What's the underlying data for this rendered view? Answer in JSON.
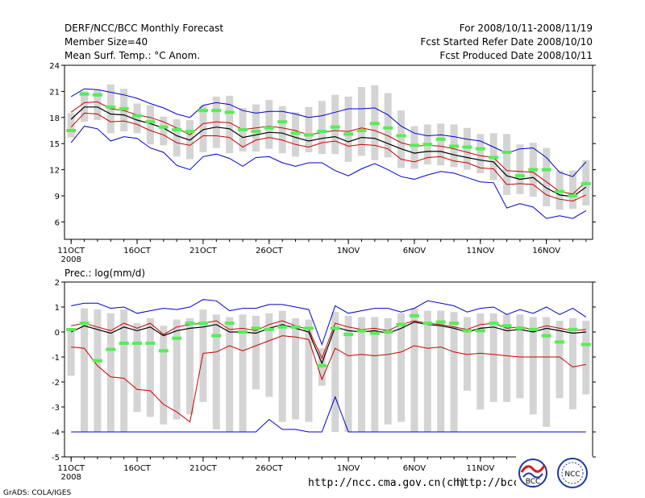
{
  "header": {
    "title": "DERF/NCC/BCC Monthly Forecast",
    "member_size": "Member Size=40",
    "variable": "Mean Surf. Temp.: °C Anom.",
    "period": "For 2008/10/11-2008/11/19",
    "started": "Fcst Started Refer Date 2008/10/10",
    "produced": "Fcst Produced Date 2008/10/11"
  },
  "footer": {
    "url1": "http://ncc.cma.gov.cn(ch)",
    "url2": "http://bcc.c",
    "credit": "GrADS: COLA/IGES",
    "logo_bcc": "BCC",
    "logo_ncc": "NCC"
  },
  "colors": {
    "envelope": "#0000cc",
    "percentile": "#cc0000",
    "mean": "#000000",
    "median": "#55ee55",
    "range_box": "#d4d4d4"
  },
  "chart_data": [
    {
      "type": "line",
      "title": "Mean Surf. Temp.: °C Anom.",
      "ylim": [
        4,
        24
      ],
      "yticks": [
        6,
        9,
        12,
        15,
        18,
        21,
        24
      ],
      "xlim": [
        0.5,
        40.5
      ],
      "xticks": [
        {
          "day": 1,
          "label": "11OCT",
          "sub": "2008"
        },
        {
          "day": 6,
          "label": "16OCT"
        },
        {
          "day": 11,
          "label": "21OCT"
        },
        {
          "day": 16,
          "label": "26OCT"
        },
        {
          "day": 22,
          "label": "1NOV"
        },
        {
          "day": 27,
          "label": "6NOV"
        },
        {
          "day": 32,
          "label": "11NOV"
        },
        {
          "day": 37,
          "label": "16NOV"
        }
      ],
      "series": [
        {
          "name": "max",
          "values": [
            20.4,
            21.3,
            21.2,
            20.9,
            20.6,
            20.2,
            19.6,
            19.1,
            18.4,
            18.0,
            19.4,
            19.7,
            19.5,
            18.8,
            18.5,
            18.7,
            18.7,
            18.4,
            18.0,
            18.2,
            18.6,
            19.0,
            19.0,
            19.1,
            18.3,
            17.0,
            16.2,
            15.9,
            16.0,
            15.8,
            15.5,
            15.3,
            14.6,
            13.9,
            14.4,
            14.5,
            13.4,
            11.7,
            11.2,
            12.9
          ]
        },
        {
          "name": "p75",
          "values": [
            18.6,
            19.7,
            19.8,
            19.0,
            18.8,
            18.3,
            18.0,
            17.5,
            16.8,
            16.0,
            17.3,
            17.5,
            17.4,
            16.6,
            16.8,
            17.0,
            16.8,
            16.5,
            16.0,
            16.3,
            16.5,
            16.4,
            16.8,
            16.5,
            15.9,
            15.1,
            14.7,
            14.8,
            14.7,
            14.4,
            14.0,
            13.6,
            13.4,
            11.9,
            11.8,
            11.7,
            10.6,
            9.5,
            9.2,
            10.6
          ]
        },
        {
          "name": "mean",
          "values": [
            17.8,
            19.2,
            19.2,
            18.4,
            18.3,
            17.7,
            17.3,
            16.8,
            15.9,
            15.4,
            16.6,
            16.9,
            16.7,
            15.7,
            16.0,
            16.3,
            16.2,
            15.7,
            15.3,
            15.6,
            15.8,
            15.2,
            15.7,
            15.6,
            15.0,
            14.4,
            13.9,
            14.1,
            14.1,
            13.7,
            13.4,
            13.1,
            12.9,
            11.3,
            10.9,
            11.1,
            9.9,
            9.1,
            8.9,
            10.0
          ]
        },
        {
          "name": "p25",
          "values": [
            16.9,
            18.5,
            18.4,
            17.5,
            17.6,
            17.2,
            16.5,
            16.0,
            15.1,
            14.8,
            15.9,
            15.9,
            15.7,
            14.6,
            15.4,
            15.7,
            15.4,
            14.9,
            14.6,
            15.1,
            15.3,
            14.7,
            14.9,
            14.8,
            14.4,
            13.2,
            12.9,
            13.4,
            13.5,
            13.0,
            12.8,
            12.2,
            12.1,
            10.3,
            10.4,
            10.3,
            9.1,
            8.6,
            8.4,
            9.1
          ]
        },
        {
          "name": "min",
          "values": [
            15.1,
            17.0,
            16.7,
            15.3,
            15.8,
            15.6,
            14.5,
            14.0,
            12.5,
            12.0,
            13.5,
            13.8,
            13.3,
            12.4,
            13.4,
            13.5,
            12.8,
            12.4,
            12.8,
            12.8,
            11.9,
            11.3,
            12.1,
            12.7,
            12.0,
            11.2,
            10.9,
            11.4,
            11.8,
            11.6,
            11.1,
            10.6,
            10.5,
            7.6,
            8.1,
            7.7,
            6.4,
            6.7,
            6.4,
            7.3
          ]
        },
        {
          "name": "median",
          "values": [
            16.5,
            20.7,
            20.6,
            19.2,
            19.0,
            18.2,
            17.5,
            16.9,
            16.6,
            16.4,
            18.8,
            18.8,
            18.6,
            16.6,
            16.4,
            16.8,
            17.5,
            16.2,
            16.0,
            16.4,
            16.9,
            16.1,
            16.5,
            17.3,
            16.8,
            15.9,
            14.8,
            14.9,
            15.5,
            14.7,
            14.6,
            14.4,
            13.4,
            14.0,
            11.3,
            12.0,
            12.0,
            9.5,
            9.0,
            10.4
          ]
        },
        {
          "name": "box_high",
          "values": [
            18.5,
            21.0,
            21.2,
            21.8,
            21.3,
            19.6,
            19.4,
            18.1,
            17.8,
            17.7,
            19.4,
            20.4,
            20.5,
            19.1,
            19.5,
            20.0,
            19.3,
            18.6,
            19.2,
            19.9,
            20.6,
            20.4,
            21.5,
            21.7,
            20.8,
            18.8,
            17.0,
            17.2,
            17.3,
            17.2,
            16.8,
            16.1,
            16.2,
            16.1,
            14.9,
            15.1,
            14.5,
            11.9,
            11.9,
            13.1
          ]
        },
        {
          "name": "box_low",
          "values": [
            15.7,
            17.5,
            17.7,
            16.2,
            16.4,
            16.2,
            14.9,
            14.8,
            13.5,
            13.2,
            14.0,
            14.5,
            13.9,
            14.1,
            14.1,
            14.4,
            13.9,
            13.5,
            14.0,
            13.8,
            13.8,
            12.9,
            13.6,
            13.1,
            13.4,
            12.2,
            12.1,
            12.6,
            12.5,
            12.3,
            12.0,
            11.6,
            10.8,
            9.1,
            9.2,
            8.9,
            7.8,
            7.4,
            7.5,
            7.9
          ]
        }
      ]
    },
    {
      "type": "line",
      "title": "Prec.: log(mm/d)",
      "ylim": [
        -5,
        2
      ],
      "yticks": [
        -5,
        -4,
        -3,
        -2,
        -1,
        0,
        1,
        2
      ],
      "xlim": [
        0.5,
        40.5
      ],
      "xticks": [
        {
          "day": 1,
          "label": "11OCT",
          "sub": "2008"
        },
        {
          "day": 6,
          "label": "16OCT"
        },
        {
          "day": 11,
          "label": "21OCT"
        },
        {
          "day": 16,
          "label": "26OCT"
        },
        {
          "day": 22,
          "label": "1NOV"
        },
        {
          "day": 27,
          "label": "6NOV"
        },
        {
          "day": 32,
          "label": "11NOV"
        },
        {
          "day": 37,
          "label": "16NOV"
        }
      ],
      "series": [
        {
          "name": "max",
          "values": [
            1.05,
            1.15,
            1.15,
            0.95,
            1.0,
            0.75,
            0.85,
            0.95,
            0.9,
            1.0,
            1.3,
            1.25,
            0.85,
            0.95,
            0.95,
            1.1,
            1.1,
            1.0,
            0.9,
            -0.5,
            1.05,
            0.75,
            0.85,
            0.95,
            0.95,
            0.8,
            0.95,
            1.25,
            1.15,
            1.05,
            0.8,
            0.95,
            1.0,
            0.7,
            0.9,
            0.75,
            1.0,
            0.7,
            0.95,
            0.6
          ]
        },
        {
          "name": "p75",
          "values": [
            0.25,
            0.35,
            0.2,
            0.05,
            0.35,
            0.15,
            0.35,
            -0.1,
            0.2,
            0.3,
            0.35,
            0.45,
            0.1,
            0.15,
            0.05,
            0.3,
            0.45,
            0.25,
            0.1,
            -1.05,
            0.35,
            0.2,
            0.1,
            0.15,
            0.05,
            0.3,
            0.45,
            0.35,
            0.3,
            0.2,
            0.1,
            0.3,
            0.35,
            0.15,
            0.2,
            0.1,
            0.25,
            0.15,
            0.05,
            0.1
          ]
        },
        {
          "name": "mean",
          "values": [
            0.0,
            0.25,
            0.1,
            -0.05,
            0.2,
            0.05,
            0.2,
            -0.15,
            0.05,
            0.15,
            0.2,
            0.3,
            0.0,
            0.0,
            -0.05,
            0.15,
            0.3,
            0.15,
            0.0,
            -1.25,
            0.2,
            0.05,
            0.0,
            0.05,
            -0.05,
            0.15,
            0.4,
            0.3,
            0.25,
            0.15,
            0.0,
            0.15,
            0.2,
            0.05,
            0.1,
            0.0,
            0.15,
            0.05,
            -0.05,
            0.0
          ]
        },
        {
          "name": "p25",
          "values": [
            -0.6,
            -0.65,
            -1.35,
            -1.8,
            -1.85,
            -2.3,
            -2.35,
            -2.9,
            -3.2,
            -3.6,
            -0.85,
            -0.8,
            -0.55,
            -0.75,
            -0.55,
            -0.35,
            -0.15,
            -0.2,
            -0.3,
            -1.9,
            -0.65,
            -0.95,
            -0.9,
            -0.95,
            -0.9,
            -0.8,
            -0.55,
            -0.65,
            -0.6,
            -0.8,
            -0.9,
            -0.85,
            -0.9,
            -0.95,
            -1.0,
            -1.0,
            -1.0,
            -1.0,
            -1.4,
            -1.3
          ]
        },
        {
          "name": "min",
          "values": [
            -4.0,
            -4.0,
            -4.0,
            -4.0,
            -4.0,
            -4.0,
            -4.0,
            -4.0,
            -4.0,
            -4.0,
            -4.0,
            -4.0,
            -4.0,
            -4.0,
            -4.0,
            -3.5,
            -3.9,
            -3.9,
            -4.0,
            -4.0,
            -2.6,
            -4.0,
            -4.0,
            -4.0,
            -4.0,
            -4.0,
            -4.0,
            -4.0,
            -4.0,
            -4.0,
            -4.0,
            -4.0,
            -4.0,
            -4.0,
            -4.0,
            -4.0,
            -4.0,
            -4.0,
            -4.0,
            -4.0
          ]
        },
        {
          "name": "median",
          "values": [
            0.1,
            0.35,
            -1.15,
            -0.7,
            -0.45,
            -0.45,
            -0.45,
            -0.75,
            -0.25,
            0.35,
            0.35,
            -0.15,
            0.35,
            0.0,
            0.15,
            0.1,
            0.2,
            0.2,
            0.15,
            -1.35,
            0.15,
            -0.1,
            0.05,
            -0.05,
            0.0,
            0.3,
            0.65,
            0.35,
            0.4,
            0.35,
            0.05,
            0.05,
            0.35,
            0.25,
            0.15,
            0.1,
            -0.15,
            -0.4,
            0.1,
            -0.5
          ]
        },
        {
          "name": "box_high",
          "values": [
            0.15,
            0.95,
            0.9,
            0.75,
            0.9,
            0.35,
            0.55,
            0.25,
            0.5,
            0.55,
            0.9,
            0.7,
            0.6,
            0.7,
            0.65,
            0.75,
            0.85,
            0.55,
            0.5,
            -0.65,
            0.8,
            0.65,
            0.6,
            0.6,
            0.55,
            0.75,
            0.95,
            0.85,
            0.85,
            0.8,
            0.6,
            0.75,
            0.75,
            0.7,
            0.7,
            0.6,
            0.6,
            0.45,
            0.55,
            0.45
          ]
        },
        {
          "name": "box_low",
          "values": [
            -1.75,
            -4.0,
            -4.0,
            -4.0,
            -4.0,
            -3.2,
            -3.4,
            -3.7,
            -3.5,
            -3.3,
            -2.8,
            -3.9,
            -4.0,
            -4.0,
            -2.3,
            -2.6,
            -3.6,
            -3.5,
            -3.6,
            -2.15,
            -4.0,
            -4.0,
            -4.0,
            -4.0,
            -3.7,
            -3.6,
            -4.0,
            -4.0,
            -4.0,
            -4.0,
            -2.35,
            -3.1,
            -2.8,
            -2.8,
            -2.65,
            -3.3,
            -3.8,
            -2.65,
            -3.1,
            -2.5
          ]
        }
      ]
    }
  ]
}
